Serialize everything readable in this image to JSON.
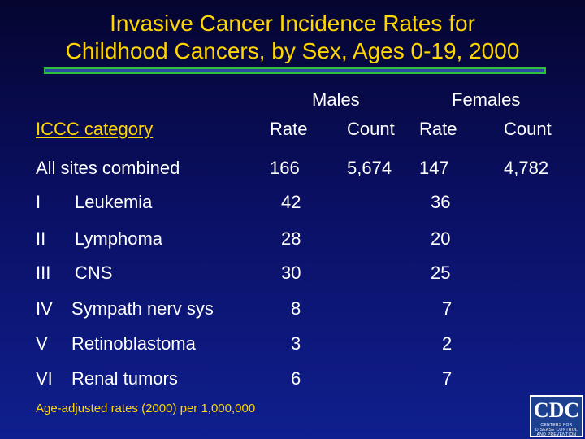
{
  "title": {
    "line1": "Invasive Cancer Incidence Rates for",
    "line2": "Childhood Cancers, by Sex, Ages 0-19, 2000"
  },
  "headers": {
    "males": "Males",
    "females": "Females",
    "category": "ICCC category",
    "male_rate": "Rate",
    "male_count": "Count",
    "female_rate": "Rate",
    "female_count": "Count"
  },
  "all_sites": {
    "label": "All sites combined",
    "male_rate": "166",
    "male_count": "5,674",
    "female_rate": "147",
    "female_count": "4,782"
  },
  "rows": [
    {
      "code": "I",
      "name": "Leukemia",
      "male_rate": "42",
      "female_rate": "36"
    },
    {
      "code": "II",
      "name": "Lymphoma",
      "male_rate": "28",
      "female_rate": "20"
    },
    {
      "code": "III",
      "name": "CNS",
      "male_rate": "30",
      "female_rate": "25"
    },
    {
      "code": "IV",
      "name": "Sympath nerv sys",
      "male_rate": "8",
      "female_rate": "7"
    },
    {
      "code": "V",
      "name": "Retinoblastoma",
      "male_rate": "3",
      "female_rate": "2"
    },
    {
      "code": "VI",
      "name": "Renal tumors",
      "male_rate": "6",
      "female_rate": "7"
    }
  ],
  "footnote": "Age-adjusted rates (2000) per 1,000,000",
  "logo": {
    "text": "CDC",
    "subtext": "CENTERS FOR DISEASE CONTROL AND PREVENTION"
  },
  "colors": {
    "title": "#ffd600",
    "text": "#ffffff",
    "background_top": "#050530",
    "background_bottom": "#0f1f8e"
  }
}
